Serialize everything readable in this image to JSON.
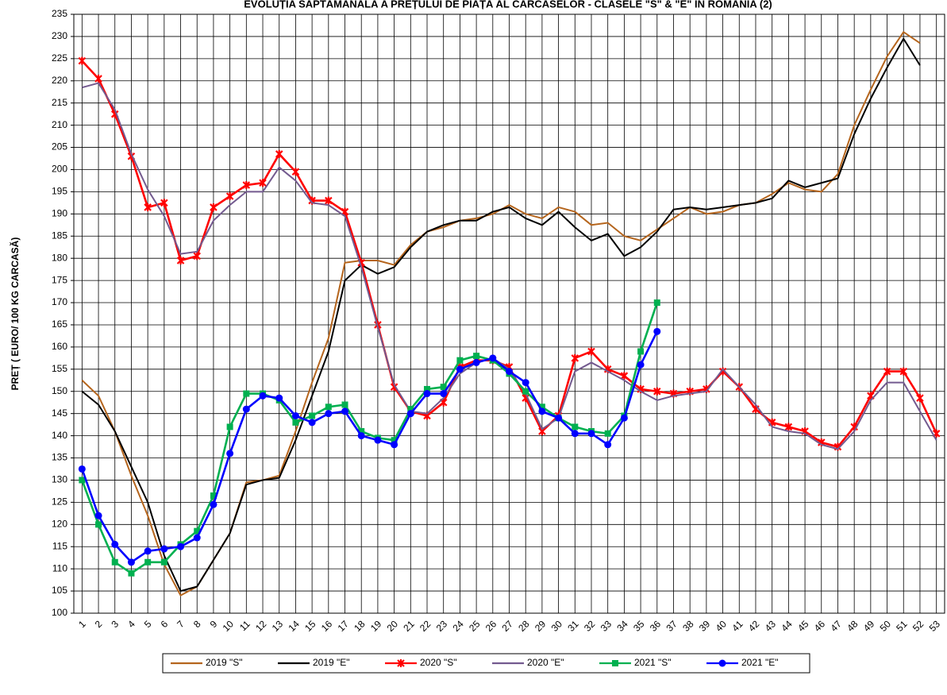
{
  "chart_data": {
    "type": "line",
    "title": "EVOLUȚIA SĂPTĂMÂNALĂ A PREȚULUI DE PIAȚĂ AL CARCASELOR - CLASELE \"S\" & \"E\" ÎN ROMÂNIA (2)",
    "y_label": "PREȚ ( EURO/ 100 KG CARCASĂ)",
    "categories": [
      "1",
      "2",
      "3",
      "4",
      "5",
      "6",
      "7",
      "8",
      "9",
      "10",
      "11",
      "12",
      "13",
      "14",
      "15",
      "16",
      "17",
      "18",
      "19",
      "20",
      "21",
      "22",
      "23",
      "24",
      "25",
      "26",
      "27",
      "28",
      "29",
      "30",
      "31",
      "32",
      "33",
      "34",
      "35",
      "36",
      "37",
      "38",
      "39",
      "40",
      "41",
      "42",
      "43",
      "44",
      "45",
      "46",
      "47",
      "48",
      "49",
      "50",
      "51",
      "52",
      "53"
    ],
    "ylim": [
      100,
      235
    ],
    "yticks": [
      100,
      105,
      110,
      115,
      120,
      125,
      130,
      135,
      140,
      145,
      150,
      155,
      160,
      165,
      170,
      175,
      180,
      185,
      190,
      195,
      200,
      205,
      210,
      215,
      220,
      225,
      230,
      235
    ],
    "grid": true,
    "legend": "bottom",
    "series": [
      {
        "name": "2019 \"S\"",
        "color": "#b5651d",
        "marker": "none",
        "values": [
          152.5,
          149,
          141,
          131,
          122,
          111,
          104,
          106,
          112,
          118,
          129.5,
          130,
          131,
          141,
          152,
          162,
          179,
          179.5,
          179.5,
          178.5,
          183,
          186,
          187,
          188.5,
          189,
          190,
          192,
          190,
          189,
          191.5,
          190.5,
          187.5,
          188,
          185,
          184,
          186.5,
          189,
          191.5,
          190,
          190.5,
          192,
          192.5,
          194.5,
          197,
          195.5,
          195,
          199,
          210,
          218,
          225.5,
          231,
          228.5,
          null
        ]
      },
      {
        "name": "2019 \"E\"",
        "color": "#000000",
        "marker": "none",
        "values": [
          150,
          147,
          141,
          133,
          125,
          113,
          105,
          106,
          112,
          118,
          129,
          130,
          130.5,
          139,
          149,
          159,
          175,
          178.5,
          176.5,
          178,
          182.5,
          186,
          187.5,
          188.5,
          188.5,
          190.5,
          191.5,
          189,
          187.5,
          190.5,
          187,
          184,
          185.5,
          180.5,
          182.5,
          186,
          191,
          191.5,
          191,
          191.5,
          192,
          192.5,
          193.5,
          197.5,
          196,
          197,
          198,
          208,
          216,
          223,
          229.5,
          223.5,
          null
        ]
      },
      {
        "name": "2020 \"S\"",
        "color": "#ff0000",
        "marker": "cross",
        "values": [
          224.5,
          220.5,
          212.5,
          203,
          191.5,
          192.5,
          179.5,
          180.5,
          191.5,
          194,
          196.5,
          197,
          203.5,
          199.5,
          193,
          193,
          190.5,
          179,
          165,
          151,
          145.5,
          144.5,
          147.5,
          155.5,
          157,
          157,
          155.5,
          148.5,
          141,
          144.5,
          157.5,
          159,
          155,
          153.5,
          150.5,
          150,
          149.5,
          150,
          150.5,
          154.5,
          151,
          146,
          143,
          142,
          141,
          138.5,
          137.5,
          142,
          149,
          154.5,
          154.5,
          148.5,
          140.5
        ]
      },
      {
        "name": "2020 \"E\"",
        "color": "#735a8f",
        "marker": "none",
        "values": [
          218.5,
          219.5,
          213.5,
          203.5,
          195.5,
          189.5,
          181,
          181.5,
          188.5,
          192,
          195,
          195,
          200.5,
          197.5,
          192.5,
          192,
          189.5,
          178,
          164.5,
          151.5,
          145.5,
          145,
          148.5,
          154,
          156.5,
          157.5,
          155,
          149.5,
          141.5,
          144,
          154.5,
          156.5,
          154.5,
          152.5,
          150,
          148,
          149,
          149.5,
          150,
          155,
          151,
          147,
          142,
          141,
          140.5,
          138,
          137,
          141,
          148,
          152,
          152,
          145.5,
          139
        ]
      },
      {
        "name": "2021 \"S\"",
        "color": "#00b050",
        "marker": "square",
        "values": [
          130,
          120,
          111.5,
          109,
          111.5,
          111.5,
          115.5,
          118.5,
          126.5,
          142,
          149.5,
          149.5,
          148,
          143,
          144.5,
          146.5,
          147,
          141,
          139.5,
          139,
          146,
          150.5,
          151,
          157,
          158,
          157,
          154,
          150,
          146.5,
          144,
          142,
          141,
          140.5,
          144.5,
          159,
          170,
          null,
          null,
          null,
          null,
          null,
          null,
          null,
          null,
          null,
          null,
          null,
          null,
          null,
          null,
          null,
          null,
          null
        ]
      },
      {
        "name": "2021 \"E\"",
        "color": "#0000ff",
        "marker": "circle",
        "values": [
          132.5,
          122,
          115.5,
          111.5,
          114,
          114.5,
          115,
          117,
          124.5,
          136,
          146,
          149,
          148.5,
          144.5,
          143,
          145,
          145.5,
          140,
          139,
          138,
          145,
          149.5,
          149.5,
          155,
          156.5,
          157.5,
          154.5,
          152,
          145.5,
          144,
          140.5,
          140.5,
          138,
          144,
          156,
          163.5,
          null,
          null,
          null,
          null,
          null,
          null,
          null,
          null,
          null,
          null,
          null,
          null,
          null,
          null,
          null,
          null,
          null
        ]
      }
    ]
  }
}
